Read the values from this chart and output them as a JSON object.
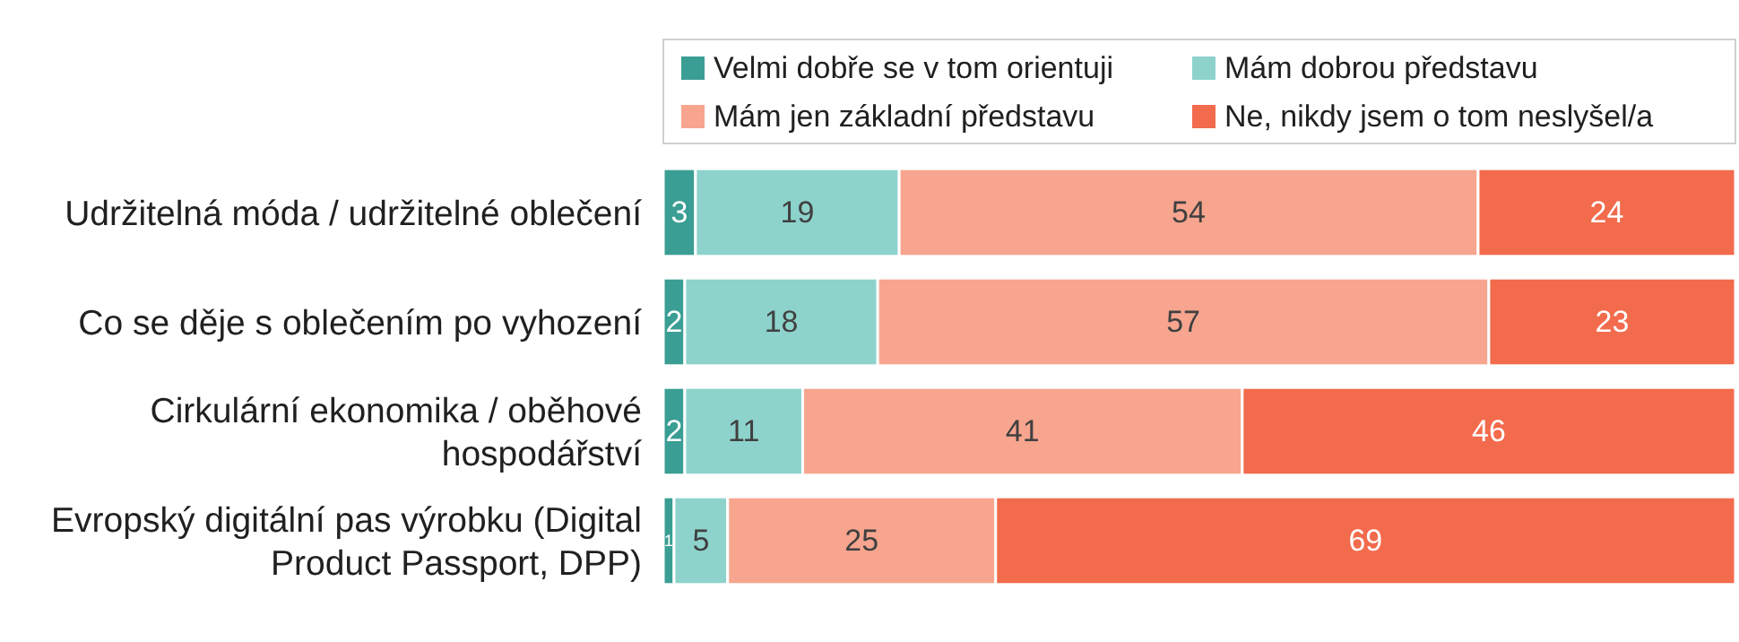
{
  "chart_data": {
    "type": "bar",
    "stacked": true,
    "orientation": "horizontal",
    "data_labels": true,
    "legend": "top",
    "tick_labels": "y",
    "xlim": [
      0,
      100
    ],
    "categories": [
      "Udržitelná móda / udržitelné oblečení",
      "Co se děje s oblečením po vyhození",
      "Cirkulární ekonomika / oběhové hospodářství",
      "Evropský digitální pas výrobku (Digital Product Passport, DPP)"
    ],
    "series": [
      {
        "name": "Velmi dobře se v tom orientuji",
        "color": "#3a9e94",
        "values": [
          3,
          2,
          2,
          1
        ]
      },
      {
        "name": "Mám dobrou představu",
        "color": "#8dd3cc",
        "values": [
          19,
          18,
          11,
          5
        ]
      },
      {
        "name": "Mám jen základní představu",
        "color": "#f7a58e",
        "values": [
          54,
          57,
          41,
          25
        ]
      },
      {
        "name": "Ne, nikdy jsem o tom neslyšel/a",
        "color": "#f26b4c",
        "values": [
          24,
          23,
          46,
          69
        ]
      }
    ]
  }
}
